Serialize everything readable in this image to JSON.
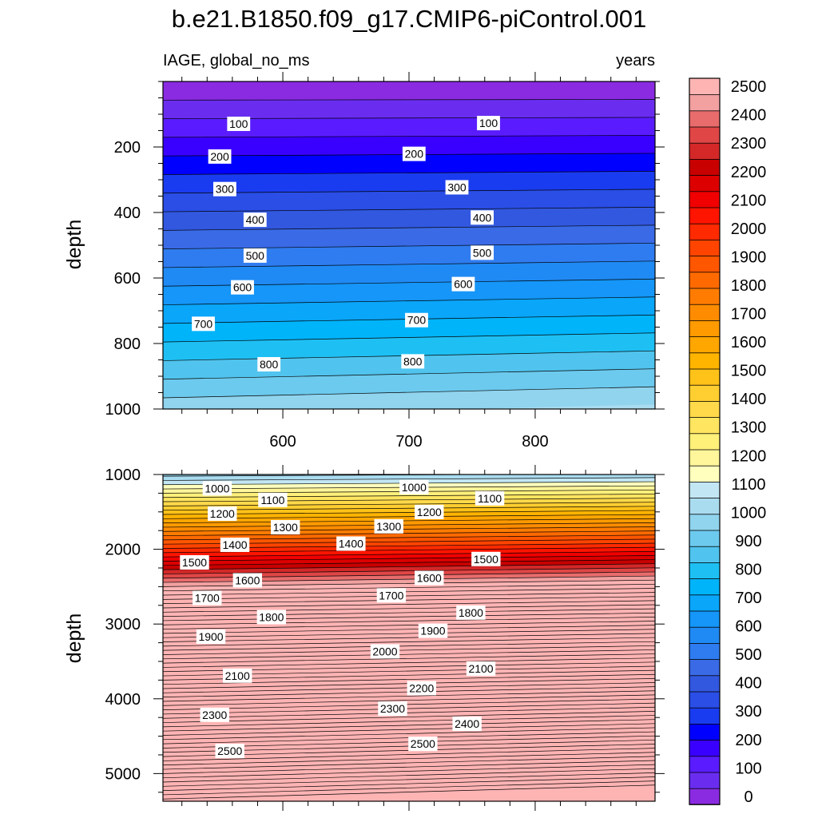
{
  "chart_data": {
    "type": "contour",
    "title": "b.e21.B1850.f09_g17.CMIP6-piControl.001",
    "subtitle_left": "IAGE, global_no_ms",
    "subtitle_right": "years",
    "xlabel": "",
    "ylabel": "depth",
    "xlim": [
      505,
      895
    ],
    "x_ticks": [
      600,
      700,
      800
    ],
    "x_tick_labels": [
      "600",
      "700",
      "800"
    ],
    "colorbar": {
      "levels": [
        0,
        100,
        200,
        300,
        400,
        500,
        600,
        700,
        800,
        900,
        1000,
        1100,
        1200,
        1300,
        1400,
        1500,
        1600,
        1700,
        1800,
        1900,
        2000,
        2100,
        2200,
        2300,
        2400,
        2500
      ],
      "labels": [
        "0",
        "100",
        "200",
        "300",
        "400",
        "500",
        "600",
        "700",
        "800",
        "900",
        "1000",
        "1100",
        "1200",
        "1300",
        "1400",
        "1500",
        "1600",
        "1700",
        "1800",
        "1900",
        "2000",
        "2100",
        "2200",
        "2300",
        "2400",
        "2500"
      ],
      "colors": [
        "#8a2be2",
        "#6a2df0",
        "#5a1cff",
        "#3a00ff",
        "#0000ff",
        "#1a3cf0",
        "#2a4ee6",
        "#3258e0",
        "#3a6ae6",
        "#2f7cf0",
        "#208af4",
        "#1596f8",
        "#0aa6fa",
        "#00b4fa",
        "#1ec0f4",
        "#50c4ee",
        "#6ccaee",
        "#90d4ee",
        "#aadcf0",
        "#c2e6f4",
        "#ffffbe",
        "#fff59a",
        "#fff07a",
        "#ffe560",
        "#ffd94a",
        "#ffce30",
        "#ffc218",
        "#ffb400",
        "#ffa600",
        "#ff9a00",
        "#ff8c00",
        "#ff7c00",
        "#ff6a00",
        "#ff5600",
        "#ff4400",
        "#ff2a00",
        "#ff1400",
        "#f00000",
        "#dc0000",
        "#c80000",
        "#d42828",
        "#e04646",
        "#e86c6c",
        "#f2a0a0",
        "#ffb4b4"
      ]
    },
    "panels": [
      {
        "name": "upper",
        "ylim": [
          0,
          1000
        ],
        "y_ticks": [
          200,
          400,
          600,
          800,
          1000
        ],
        "y_tick_labels": [
          "200",
          "400",
          "600",
          "800",
          "1000"
        ],
        "contour_labels": [
          {
            "text": "100",
            "x": 565,
            "y": 130
          },
          {
            "text": "100",
            "x": 763,
            "y": 130
          },
          {
            "text": "200",
            "x": 550,
            "y": 230
          },
          {
            "text": "200",
            "x": 704,
            "y": 225
          },
          {
            "text": "300",
            "x": 554,
            "y": 330
          },
          {
            "text": "300",
            "x": 738,
            "y": 330
          },
          {
            "text": "400",
            "x": 578,
            "y": 425
          },
          {
            "text": "400",
            "x": 758,
            "y": 425
          },
          {
            "text": "500",
            "x": 578,
            "y": 535
          },
          {
            "text": "500",
            "x": 758,
            "y": 535
          },
          {
            "text": "600",
            "x": 568,
            "y": 632
          },
          {
            "text": "600",
            "x": 743,
            "y": 632
          },
          {
            "text": "700",
            "x": 537,
            "y": 742
          },
          {
            "text": "700",
            "x": 706,
            "y": 742
          },
          {
            "text": "800",
            "x": 589,
            "y": 870
          },
          {
            "text": "800",
            "x": 703,
            "y": 870
          }
        ]
      },
      {
        "name": "lower",
        "ylim": [
          1000,
          5370
        ],
        "y_ticks": [
          1000,
          2000,
          3000,
          4000,
          5000
        ],
        "y_tick_labels": [
          "1000",
          "2000",
          "3000",
          "4000",
          "5000"
        ],
        "contour_labels": [
          {
            "text": "1000",
            "x": 548,
            "y": 1190
          },
          {
            "text": "1000",
            "x": 704,
            "y": 1190
          },
          {
            "text": "1100",
            "x": 592,
            "y": 1350
          },
          {
            "text": "1100",
            "x": 764,
            "y": 1350
          },
          {
            "text": "1200",
            "x": 552,
            "y": 1530
          },
          {
            "text": "1200",
            "x": 716,
            "y": 1530
          },
          {
            "text": "1300",
            "x": 602,
            "y": 1720
          },
          {
            "text": "1300",
            "x": 684,
            "y": 1720
          },
          {
            "text": "1400",
            "x": 562,
            "y": 1950
          },
          {
            "text": "1400",
            "x": 654,
            "y": 1950
          },
          {
            "text": "1500",
            "x": 530,
            "y": 2180
          },
          {
            "text": "1500",
            "x": 761,
            "y": 2180
          },
          {
            "text": "1600",
            "x": 572,
            "y": 2430
          },
          {
            "text": "1600",
            "x": 716,
            "y": 2430
          },
          {
            "text": "1700",
            "x": 540,
            "y": 2660
          },
          {
            "text": "1700",
            "x": 686,
            "y": 2660
          },
          {
            "text": "1800",
            "x": 591,
            "y": 2930
          },
          {
            "text": "1800",
            "x": 749,
            "y": 2910
          },
          {
            "text": "1900",
            "x": 543,
            "y": 3180
          },
          {
            "text": "1900",
            "x": 719,
            "y": 3150
          },
          {
            "text": "2000",
            "x": 681,
            "y": 3420
          },
          {
            "text": "2100",
            "x": 564,
            "y": 3710
          },
          {
            "text": "2100",
            "x": 757,
            "y": 3680
          },
          {
            "text": "2200",
            "x": 710,
            "y": 3930
          },
          {
            "text": "2300",
            "x": 546,
            "y": 4230
          },
          {
            "text": "2300",
            "x": 687,
            "y": 4200
          },
          {
            "text": "2400",
            "x": 746,
            "y": 4430
          },
          {
            "text": "2500",
            "x": 558,
            "y": 4720
          },
          {
            "text": "2500",
            "x": 711,
            "y": 4690
          }
        ]
      }
    ]
  }
}
